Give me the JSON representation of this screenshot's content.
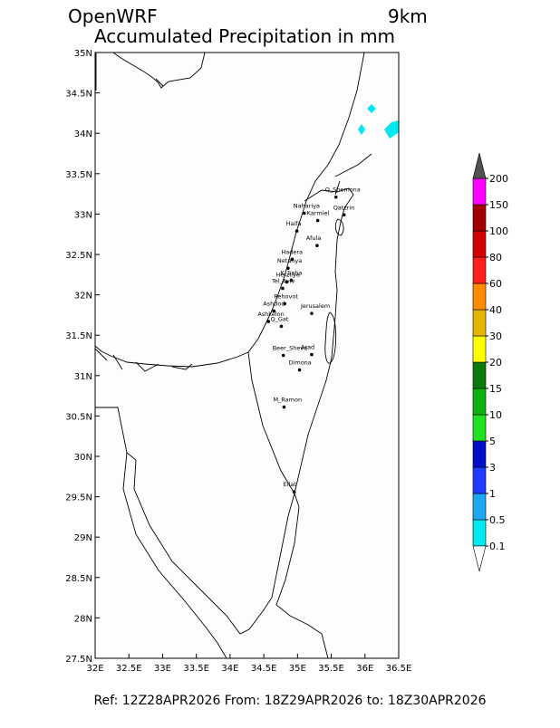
{
  "header": {
    "left": "OpenWRF",
    "right": "9km",
    "title": "Accumulated Precipitation in mm"
  },
  "map": {
    "lonlim": [
      32,
      36.5
    ],
    "latlim": [
      27.5,
      35
    ],
    "xticks": [
      {
        "value": 32,
        "label": "32E"
      },
      {
        "value": 32.5,
        "label": "32.5E"
      },
      {
        "value": 33,
        "label": "33E"
      },
      {
        "value": 33.5,
        "label": "33.5E"
      },
      {
        "value": 34,
        "label": "34E"
      },
      {
        "value": 34.5,
        "label": "34.5E"
      },
      {
        "value": 35,
        "label": "35E"
      },
      {
        "value": 35.5,
        "label": "35.5E"
      },
      {
        "value": 36,
        "label": "36E"
      },
      {
        "value": 36.5,
        "label": "36.5E"
      }
    ],
    "yticks": [
      {
        "value": 27.5,
        "label": "27.5N"
      },
      {
        "value": 28,
        "label": "28N"
      },
      {
        "value": 28.5,
        "label": "28.5N"
      },
      {
        "value": 29,
        "label": "29N"
      },
      {
        "value": 29.5,
        "label": "29.5N"
      },
      {
        "value": 30,
        "label": "30N"
      },
      {
        "value": 30.5,
        "label": "30.5N"
      },
      {
        "value": 31,
        "label": "31N"
      },
      {
        "value": 31.5,
        "label": "31.5N"
      },
      {
        "value": 32,
        "label": "32N"
      },
      {
        "value": 32.5,
        "label": "32.5N"
      },
      {
        "value": 33,
        "label": "33N"
      },
      {
        "value": 33.5,
        "label": "33.5N"
      },
      {
        "value": 34,
        "label": "34N"
      },
      {
        "value": 34.5,
        "label": "34.5N"
      },
      {
        "value": 35,
        "label": "35N"
      }
    ],
    "cities": [
      {
        "name": "Q_Shemona",
        "lon": 35.57,
        "lat": 33.21
      },
      {
        "name": "Nahariya",
        "lon": 35.1,
        "lat": 33.01
      },
      {
        "name": "Qatzrin",
        "lon": 35.69,
        "lat": 32.99
      },
      {
        "name": "Karmiel",
        "lon": 35.3,
        "lat": 32.92
      },
      {
        "name": "Haifa",
        "lon": 34.99,
        "lat": 32.79
      },
      {
        "name": "Afula",
        "lon": 35.29,
        "lat": 32.61
      },
      {
        "name": "Hadera",
        "lon": 34.92,
        "lat": 32.44
      },
      {
        "name": "Netanya",
        "lon": 34.86,
        "lat": 32.33
      },
      {
        "name": "Herzliya",
        "lon": 34.84,
        "lat": 32.16
      },
      {
        "name": "K_Saba",
        "lon": 34.91,
        "lat": 32.18
      },
      {
        "name": "Tel_Aviv",
        "lon": 34.78,
        "lat": 32.08
      },
      {
        "name": "Rehovot",
        "lon": 34.81,
        "lat": 31.89
      },
      {
        "name": "Ashdod",
        "lon": 34.65,
        "lat": 31.8
      },
      {
        "name": "Ashkelon",
        "lon": 34.57,
        "lat": 31.67
      },
      {
        "name": "Q_Gat",
        "lon": 34.76,
        "lat": 31.61
      },
      {
        "name": "Jerusalem",
        "lon": 35.21,
        "lat": 31.77
      },
      {
        "name": "Beer_Sheva",
        "lon": 34.79,
        "lat": 31.25
      },
      {
        "name": "Arad",
        "lon": 35.21,
        "lat": 31.26
      },
      {
        "name": "Dimona",
        "lon": 35.03,
        "lat": 31.07
      },
      {
        "name": "M_Ramon",
        "lon": 34.8,
        "lat": 30.61
      },
      {
        "name": "Eilat",
        "lon": 34.95,
        "lat": 29.56
      }
    ]
  },
  "colorbar": {
    "ticks": [
      0.1,
      0.5,
      1,
      3,
      5,
      10,
      15,
      20,
      30,
      40,
      60,
      80,
      100,
      150,
      200
    ],
    "colors": [
      "#00e8f0",
      "#1ea6f0",
      "#1e3cff",
      "#0010c8",
      "#20e020",
      "#10b010",
      "#0a7a0a",
      "#ffff00",
      "#e6b400",
      "#ff8c00",
      "#ff1e1e",
      "#d20000",
      "#a00000",
      "#ff00ff"
    ],
    "over_color": "#505050",
    "top_color": "#9150c8",
    "under_color": "#ffffff"
  },
  "footer": "Ref: 12Z28APR2026  From: 18Z29APR2026  to: 18Z30APR2026"
}
